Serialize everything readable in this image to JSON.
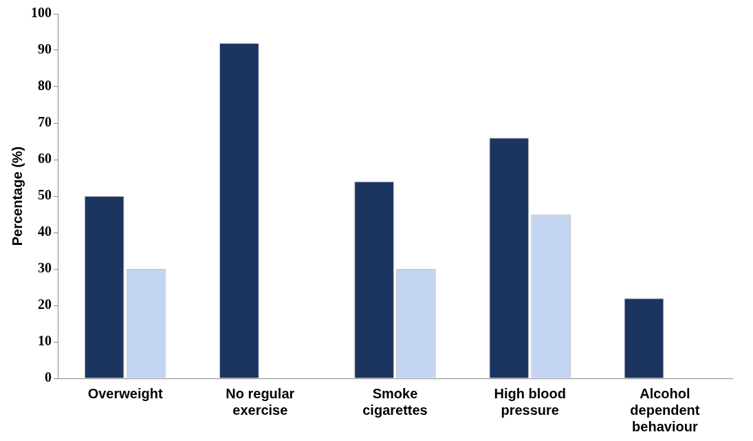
{
  "chart_data": {
    "type": "bar",
    "ylabel": "Percentage (%)",
    "categories": [
      "Overweight",
      "No regular exercise",
      "Smoke cigarettes",
      "High blood pressure",
      "Alcohol dependent behaviour"
    ],
    "series": [
      {
        "color": "#1b3560",
        "values": [
          50,
          92,
          54,
          66,
          22
        ]
      },
      {
        "color": "#c3d4f0",
        "values": [
          30,
          null,
          30,
          45,
          null
        ]
      }
    ],
    "ylim": [
      0,
      100
    ],
    "yticks": [
      0,
      10,
      20,
      30,
      40,
      50,
      60,
      70,
      80,
      90,
      100
    ],
    "grid": false,
    "legend": false
  }
}
